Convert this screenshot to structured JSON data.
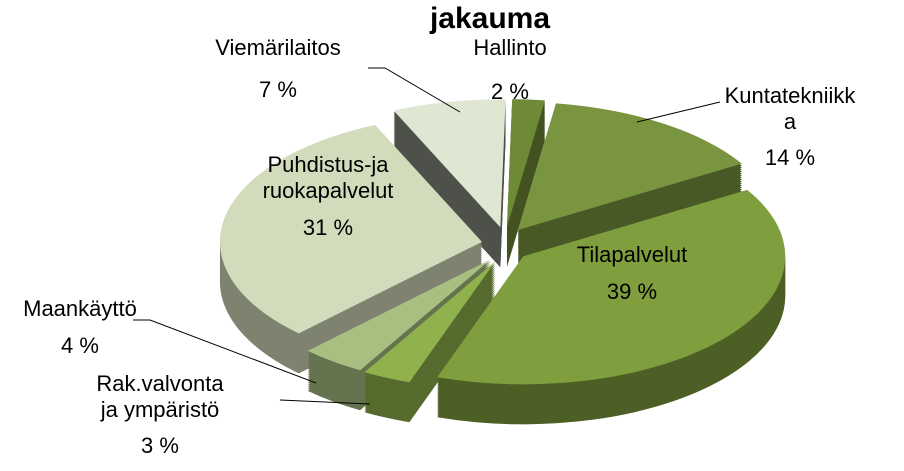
{
  "chart_data": {
    "type": "pie3d",
    "title": "jakauma",
    "categories": [
      "Hallinto",
      "Kuntatekniikka",
      "Tilapalvelut",
      "Rak.valvonta ja ympäristö",
      "Maankäyttö",
      "Puhdistus-ja ruokapalvelut",
      "Viemärilaitos"
    ],
    "values": [
      2,
      14,
      39,
      3,
      4,
      31,
      7
    ],
    "value_labels": [
      "2 %",
      "14 %",
      "39 %",
      "3 %",
      "4 %",
      "31 %",
      "7 %"
    ],
    "colors": [
      "#6f8a36",
      "#7a9540",
      "#7f9e3e",
      "#8fb24c",
      "#a9bf82",
      "#d2dbbb",
      "#dfe6d2"
    ]
  }
}
